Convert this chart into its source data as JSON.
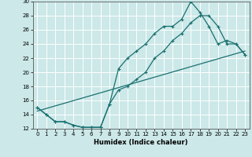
{
  "xlabel": "Humidex (Indice chaleur)",
  "ylabel": "",
  "bg_color": "#cce8e8",
  "line_color": "#1a7070",
  "grid_color": "#ffffff",
  "xlim": [
    -0.5,
    23.5
  ],
  "ylim": [
    12,
    30
  ],
  "yticks": [
    12,
    14,
    16,
    18,
    20,
    22,
    24,
    26,
    28,
    30
  ],
  "xticks": [
    0,
    1,
    2,
    3,
    4,
    5,
    6,
    7,
    8,
    9,
    10,
    11,
    12,
    13,
    14,
    15,
    16,
    17,
    18,
    19,
    20,
    21,
    22,
    23
  ],
  "line1_x": [
    0,
    1,
    2,
    3,
    4,
    5,
    6,
    7,
    8,
    9,
    10,
    11,
    12,
    13,
    14,
    15,
    16,
    17,
    18,
    19,
    20,
    21,
    22,
    23
  ],
  "line1_y": [
    15,
    14,
    13,
    13,
    12.5,
    12.2,
    12.2,
    12.2,
    15.5,
    17.5,
    18,
    19,
    20,
    22,
    23,
    24.5,
    25.5,
    27,
    28,
    28,
    26.5,
    24,
    24,
    22.5
  ],
  "line2_x": [
    0,
    1,
    2,
    3,
    4,
    5,
    6,
    7,
    8,
    9,
    10,
    11,
    12,
    13,
    14,
    15,
    16,
    17,
    18,
    19,
    20,
    21,
    22,
    23
  ],
  "line2_y": [
    15,
    14,
    13,
    13,
    12.5,
    12.2,
    12.2,
    12.2,
    15.5,
    20.5,
    22,
    23,
    24,
    25.5,
    26.5,
    26.5,
    27.5,
    30,
    28.5,
    26.5,
    24,
    24.5,
    24,
    22.5
  ],
  "line3_x": [
    0,
    23
  ],
  "line3_y": [
    14.5,
    23
  ]
}
